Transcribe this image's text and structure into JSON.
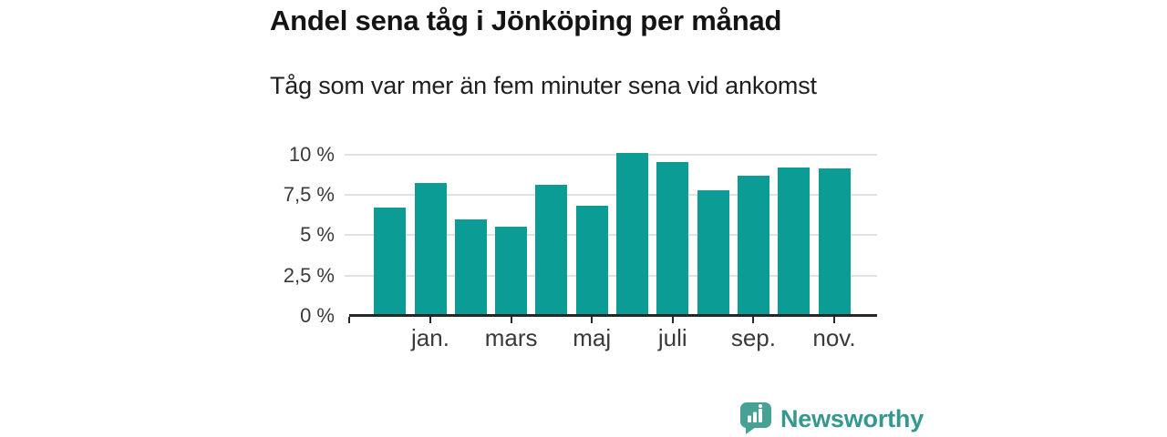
{
  "header": {
    "title": "Andel sena tåg i Jönköping per månad",
    "subtitle": "Tåg som var mer än fem minuter sena vid ankomst"
  },
  "branding": {
    "logo_text": "Newsworthy",
    "logo_icon": "speech-bubble-bar-chart-icon",
    "logo_text_color": "#35988e",
    "logo_icon_color": "#47a195"
  },
  "chart_data": {
    "type": "bar",
    "title": "Andel sena tåg i Jönköping per månad",
    "subtitle": "Tåg som var mer än fem minuter sena vid ankomst",
    "values": [
      6.7,
      8.2,
      6.0,
      5.5,
      8.1,
      6.8,
      10.1,
      9.5,
      7.8,
      8.7,
      9.2,
      9.1
    ],
    "bar_count": 12,
    "x_tick_labels": [
      "jan.",
      "mars",
      "maj",
      "juli",
      "sep.",
      "nov."
    ],
    "x_tick_bar_indices": [
      1,
      3,
      5,
      7,
      9,
      11
    ],
    "y_tick_labels": [
      "0 %",
      "2,5 %",
      "5 %",
      "7,5 %",
      "10 %"
    ],
    "y_tick_values": [
      0,
      2.5,
      5,
      7.5,
      10
    ],
    "ylim": [
      0,
      10
    ],
    "grid": true,
    "legend": "none",
    "bar_color": "#0b9d95",
    "grid_color": "#e1e1e1",
    "axis_color": "#262626",
    "tick_label_color": "#3a3a3a"
  }
}
